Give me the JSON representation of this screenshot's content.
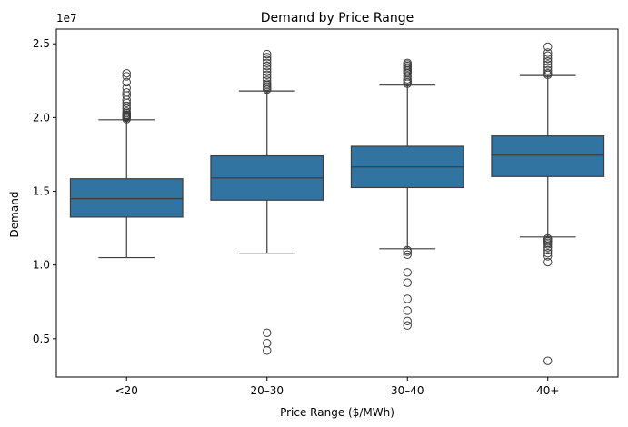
{
  "chart_data": {
    "type": "box",
    "title": "Demand by Price Range",
    "xlabel": "Price Range ($/MWh)",
    "ylabel": "Demand",
    "y_scale_label": "1e7",
    "ylim": [
      0.24,
      2.6
    ],
    "y_ticks": [
      0.5,
      1.0,
      1.5,
      2.0,
      2.5
    ],
    "y_tick_labels": [
      "0.5",
      "1.0",
      "1.5",
      "2.0",
      "2.5"
    ],
    "y_units_multiplier": 10000000,
    "grid": false,
    "box_color": "#3274a1",
    "line_color": "#3d3d3d",
    "categories": [
      "<20",
      "20–30",
      "30–40",
      "40+"
    ],
    "boxes": [
      {
        "category": "<20",
        "whisker_low": 1.05,
        "q1": 1.325,
        "median": 1.45,
        "q3": 1.585,
        "whisker_high": 1.985,
        "outliers": [
          1.99,
          2.0,
          2.005,
          2.01,
          2.015,
          2.02,
          2.03,
          2.04,
          2.06,
          2.08,
          2.1,
          2.12,
          2.15,
          2.17,
          2.2,
          2.24,
          2.28,
          2.3
        ]
      },
      {
        "category": "20–30",
        "whisker_low": 1.08,
        "q1": 1.44,
        "median": 1.59,
        "q3": 1.74,
        "whisker_high": 2.18,
        "outliers": [
          0.42,
          0.47,
          0.54,
          2.19,
          2.2,
          2.21,
          2.22,
          2.23,
          2.25,
          2.27,
          2.29,
          2.31,
          2.33,
          2.35,
          2.37,
          2.39,
          2.41,
          2.43
        ]
      },
      {
        "category": "30–40",
        "whisker_low": 1.11,
        "q1": 1.525,
        "median": 1.665,
        "q3": 1.805,
        "whisker_high": 2.22,
        "outliers": [
          0.59,
          0.62,
          0.69,
          0.77,
          0.88,
          0.95,
          1.07,
          1.09,
          1.1,
          2.23,
          2.24,
          2.25,
          2.26,
          2.28,
          2.3,
          2.31,
          2.32,
          2.33,
          2.34,
          2.35,
          2.36,
          2.37
        ]
      },
      {
        "category": "40+",
        "whisker_low": 1.19,
        "q1": 1.6,
        "median": 1.745,
        "q3": 1.875,
        "whisker_high": 2.285,
        "outliers": [
          0.35,
          1.02,
          1.06,
          1.08,
          1.1,
          1.12,
          1.14,
          1.15,
          1.16,
          1.17,
          1.18,
          2.29,
          2.3,
          2.32,
          2.34,
          2.36,
          2.38,
          2.4,
          2.42,
          2.44,
          2.48
        ]
      }
    ]
  }
}
